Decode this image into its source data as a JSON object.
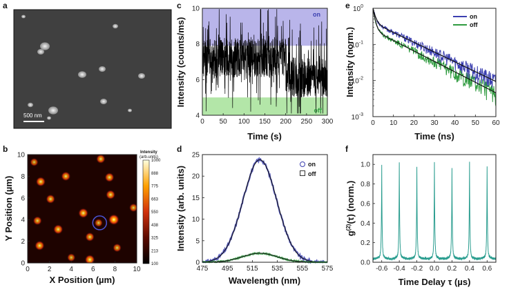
{
  "colors": {
    "on": "#3b3fb0",
    "off": "#2e9a3e",
    "fit": "#111111",
    "g2": "#2a9d8f",
    "on_band": "#b9b5ea",
    "off_band": "#b3e6a8",
    "sem_bg": "#3f3f3f"
  },
  "panel_labels": {
    "a": "a",
    "b": "b",
    "c": "c",
    "d": "d",
    "e": "e",
    "f": "f"
  },
  "chart_data": [
    {
      "panel": "a",
      "type": "image",
      "scale_bar_label": "500 nm"
    },
    {
      "panel": "b",
      "type": "heatmap",
      "xlabel": "X Position (µm)",
      "ylabel": "Y Position (µm)",
      "xlim": [
        0,
        10
      ],
      "ylim": [
        0,
        10
      ],
      "xticks": [
        "0",
        "2",
        "4",
        "6",
        "8",
        "10"
      ],
      "yticks": [
        "0",
        "2",
        "4",
        "6",
        "8",
        "10"
      ],
      "colorbar_title": "Intensity",
      "colorbar_unit": "(arb.units)",
      "colorbar_ticks": [
        "1000",
        "888",
        "775",
        "663",
        "550",
        "438",
        "325",
        "213",
        "100"
      ],
      "spots": [
        {
          "x": 1.2,
          "y": 7.5,
          "v": 0.8
        },
        {
          "x": 3.5,
          "y": 8.0,
          "v": 0.75
        },
        {
          "x": 6.7,
          "y": 9.6,
          "v": 0.7
        },
        {
          "x": 7.5,
          "y": 7.9,
          "v": 0.75
        },
        {
          "x": 5.1,
          "y": 4.6,
          "v": 0.85
        },
        {
          "x": 2.1,
          "y": 5.9,
          "v": 0.7
        },
        {
          "x": 7.9,
          "y": 4.0,
          "v": 1.0
        },
        {
          "x": 7.6,
          "y": 6.3,
          "v": 0.75
        },
        {
          "x": 0.9,
          "y": 3.9,
          "v": 0.65
        },
        {
          "x": 2.8,
          "y": 3.1,
          "v": 0.8
        },
        {
          "x": 5.7,
          "y": 2.4,
          "v": 0.7
        },
        {
          "x": 1.1,
          "y": 1.6,
          "v": 0.8
        },
        {
          "x": 5.7,
          "y": 0.3,
          "v": 0.85
        },
        {
          "x": 6.5,
          "y": 3.7,
          "v": 0.55
        },
        {
          "x": 4.0,
          "y": 0.5,
          "v": 0.55
        },
        {
          "x": 8.2,
          "y": 1.4,
          "v": 0.6
        },
        {
          "x": 9.7,
          "y": 5.1,
          "v": 0.6
        },
        {
          "x": 0.6,
          "y": 9.3,
          "v": 0.55
        }
      ],
      "circle": {
        "x": 6.6,
        "y": 3.7
      }
    },
    {
      "panel": "c",
      "type": "line",
      "xlabel": "Time (s)",
      "ylabel": "Intensity (counts/ms)",
      "xlim": [
        0,
        300
      ],
      "ylim": [
        4,
        10
      ],
      "xticks": [
        "0",
        "50",
        "100",
        "150",
        "200",
        "250",
        "300"
      ],
      "yticks": [
        "4",
        "6",
        "8",
        "10"
      ],
      "on_threshold": 7.9,
      "off_threshold": 5.0,
      "band_labels": {
        "on": "on",
        "off": "off"
      }
    },
    {
      "panel": "d",
      "type": "line",
      "xlabel": "Wavelength (nm)",
      "ylabel": "Intensity (arb. units)",
      "xlim": [
        475,
        575
      ],
      "ylim": [
        0,
        25
      ],
      "xticks": [
        "475",
        "495",
        "515",
        "535",
        "555",
        "575"
      ],
      "yticks": [
        "0",
        "5",
        "10",
        "15",
        "20",
        "25"
      ],
      "series": [
        {
          "name": "on",
          "center": 521,
          "sigma": 13.5,
          "peak": 23.8
        },
        {
          "name": "off",
          "center": 521,
          "sigma": 14,
          "peak": 2.1
        }
      ]
    },
    {
      "panel": "e",
      "type": "line",
      "yscale": "log",
      "xlabel": "Time (ns)",
      "ylabel": "Intensity (norm.)",
      "xlim": [
        0,
        60
      ],
      "ylim": [
        0.001,
        1
      ],
      "xticks": [
        "0",
        "10",
        "20",
        "30",
        "40",
        "50",
        "60"
      ],
      "yticks": [
        "10",
        "10",
        "10",
        "10"
      ],
      "ytick_exponents": [
        "-3",
        "-2",
        "-1",
        "0"
      ],
      "series": [
        {
          "name": "on",
          "a1": 0.6,
          "tau1": 1.2,
          "a2": 0.4,
          "tau2": 16.0
        },
        {
          "name": "off",
          "a1": 0.75,
          "tau1": 1.0,
          "a2": 0.25,
          "tau2": 15.0
        }
      ]
    },
    {
      "panel": "f",
      "type": "line",
      "xlabel": "Time Delay τ (µs)",
      "ylabel_main": "g",
      "ylabel_sup": "(2)",
      "ylabel_rest": "(τ) (norm.)",
      "xlim": [
        -0.7,
        0.7
      ],
      "ylim": [
        0,
        1.1
      ],
      "xticks": [
        "-0.6",
        "-0.4",
        "-0.2",
        "0.0",
        "0.2",
        "0.4",
        "0.6"
      ],
      "yticks": [
        "0.0",
        "0.2",
        "0.4",
        "0.6",
        "0.8",
        "1.0"
      ],
      "peaks": [
        {
          "t": -0.6,
          "h": 0.94
        },
        {
          "t": -0.4,
          "h": 0.98
        },
        {
          "t": -0.2,
          "h": 0.94
        },
        {
          "t": 0.0,
          "h": 0.97
        },
        {
          "t": 0.2,
          "h": 0.93
        },
        {
          "t": 0.4,
          "h": 0.99
        },
        {
          "t": 0.6,
          "h": 0.94
        }
      ]
    }
  ]
}
